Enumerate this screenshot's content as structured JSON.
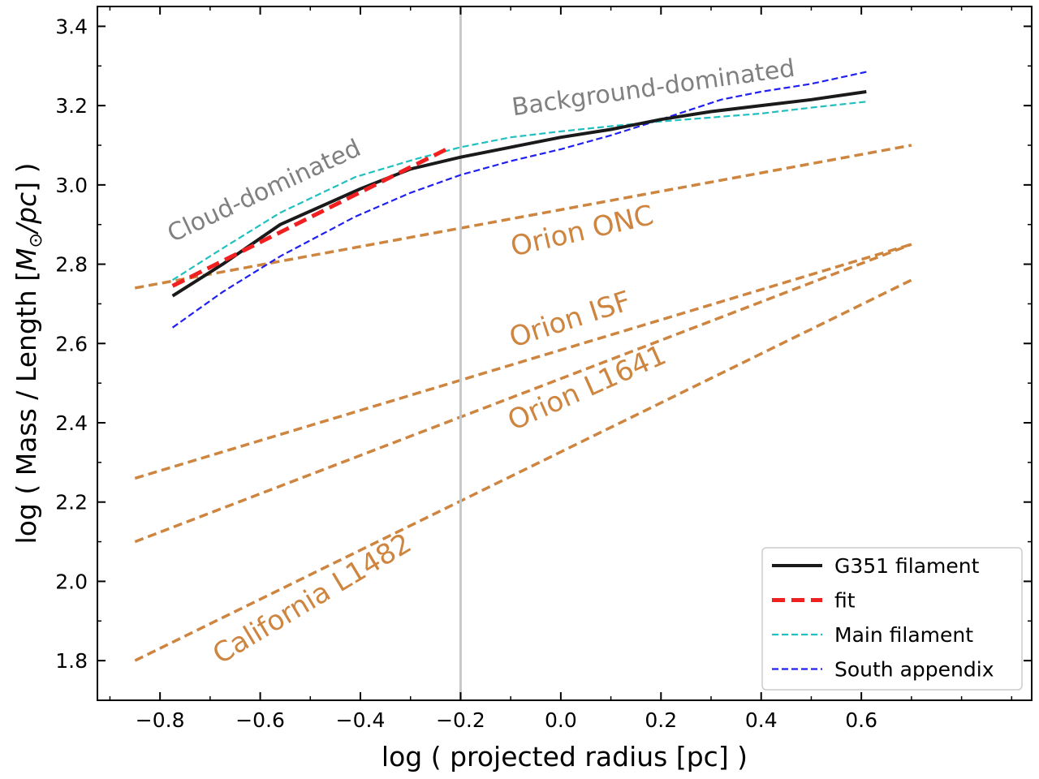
{
  "chart_data": {
    "type": "line",
    "xlabel": "log ( projected radius [pc] )",
    "ylabel_prefix": "log ( Mass / Length [",
    "ylabel_math_base": "M",
    "ylabel_math_sub": "⊙",
    "ylabel_math_rest": "/pc",
    "ylabel_suffix": "] )",
    "xlim": [
      -0.925,
      0.94
    ],
    "ylim": [
      1.7,
      3.45
    ],
    "xticks": [
      -0.8,
      -0.6,
      -0.4,
      -0.2,
      0.0,
      0.2,
      0.4,
      0.6
    ],
    "xtick_labels": [
      "−0.8",
      "−0.6",
      "−0.4",
      "−0.2",
      "0.0",
      "0.2",
      "0.4",
      "0.6"
    ],
    "yticks": [
      1.8,
      2.0,
      2.2,
      2.4,
      2.6,
      2.8,
      3.0,
      3.2,
      3.4
    ],
    "ytick_labels": [
      "1.8",
      "2.0",
      "2.2",
      "2.4",
      "2.6",
      "2.8",
      "3.0",
      "3.2",
      "3.4"
    ],
    "vline_x": -0.2,
    "series": [
      {
        "name": "Orion ONC",
        "style": "ref",
        "color": "#cd853f",
        "x": [
          -0.85,
          0.7
        ],
        "y": [
          2.74,
          3.1
        ]
      },
      {
        "name": "Orion ISF",
        "style": "ref",
        "color": "#cd853f",
        "x": [
          -0.85,
          0.7
        ],
        "y": [
          2.26,
          2.85
        ]
      },
      {
        "name": "Orion L1641",
        "style": "ref",
        "color": "#cd853f",
        "x": [
          -0.85,
          0.7
        ],
        "y": [
          2.1,
          2.85
        ]
      },
      {
        "name": "California L1482",
        "style": "ref",
        "color": "#cd853f",
        "x": [
          -0.85,
          0.7
        ],
        "y": [
          1.8,
          2.76
        ]
      },
      {
        "name": "Main filament",
        "style": "cyan",
        "color": "#20c0c0",
        "x": [
          -0.775,
          -0.675,
          -0.56,
          -0.41,
          -0.29,
          -0.2,
          -0.1,
          0.0,
          0.1,
          0.2,
          0.3,
          0.4,
          0.5,
          0.61
        ],
        "y": [
          2.76,
          2.84,
          2.93,
          3.02,
          3.065,
          3.095,
          3.12,
          3.135,
          3.148,
          3.16,
          3.17,
          3.18,
          3.195,
          3.21
        ]
      },
      {
        "name": "South appendix",
        "style": "blue",
        "color": "#2020f0",
        "x": [
          -0.775,
          -0.675,
          -0.56,
          -0.41,
          -0.3,
          -0.2,
          -0.1,
          0.0,
          0.1,
          0.2,
          0.32,
          0.4,
          0.5,
          0.61
        ],
        "y": [
          2.64,
          2.73,
          2.82,
          2.92,
          2.98,
          3.025,
          3.06,
          3.09,
          3.125,
          3.165,
          3.215,
          3.235,
          3.255,
          3.285
        ]
      },
      {
        "name": "G351 filament",
        "style": "black",
        "color": "#1a1a1a",
        "x": [
          -0.775,
          -0.675,
          -0.56,
          -0.4,
          -0.3,
          -0.2,
          -0.1,
          0.0,
          0.1,
          0.2,
          0.3,
          0.4,
          0.5,
          0.61
        ],
        "y": [
          2.72,
          2.8,
          2.9,
          2.99,
          3.04,
          3.07,
          3.095,
          3.12,
          3.14,
          3.165,
          3.185,
          3.2,
          3.215,
          3.235
        ]
      },
      {
        "name": "fit",
        "style": "fit",
        "color": "#f02020",
        "x": [
          -0.775,
          -0.22
        ],
        "y": [
          2.745,
          3.095
        ]
      }
    ],
    "legend": {
      "position": "lower right",
      "entries": [
        {
          "label": "G351 filament",
          "style": "black"
        },
        {
          "label": "fit",
          "style": "fit"
        },
        {
          "label": "Main filament",
          "style": "cyan"
        },
        {
          "label": "South appendix",
          "style": "blue"
        }
      ]
    },
    "annotations": [
      {
        "text": "Cloud-dominated",
        "x": -0.775,
        "y": 2.855,
        "rotation": -25,
        "color": "gray"
      },
      {
        "text": "Background-dominated",
        "x": -0.095,
        "y": 3.175,
        "rotation": -8,
        "color": "gray"
      },
      {
        "text": "Orion ONC",
        "x": -0.095,
        "y": 2.82,
        "rotation": -13,
        "color": "orange"
      },
      {
        "text": "Orion ISF",
        "x": -0.095,
        "y": 2.59,
        "rotation": -18,
        "color": "orange"
      },
      {
        "text": "Orion L1641",
        "x": -0.095,
        "y": 2.38,
        "rotation": -24,
        "color": "orange"
      },
      {
        "text": "California L1482",
        "x": -0.68,
        "y": 1.79,
        "rotation": -31,
        "color": "orange"
      }
    ]
  }
}
